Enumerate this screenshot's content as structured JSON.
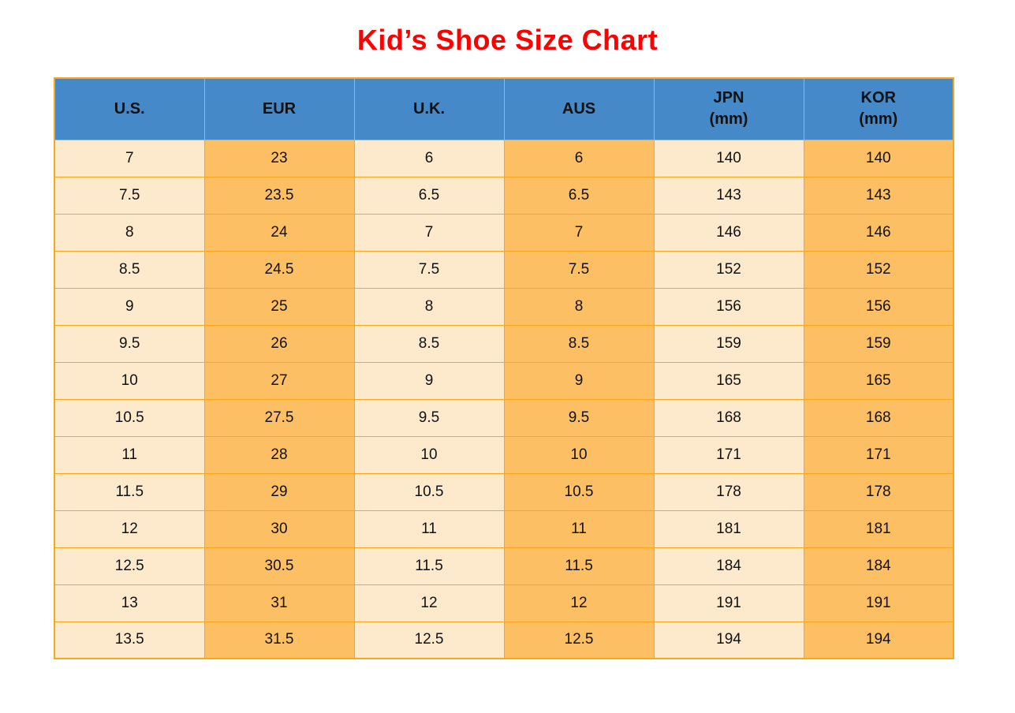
{
  "page": {
    "title": "Kid’s Shoe Size Chart"
  },
  "colors": {
    "title": "#FF0000",
    "header_bg": "#4589C8",
    "cell_light": "#FDEACC",
    "cell_orange": "#FCBF63",
    "grid_border": "#F9A61F",
    "text": "#111111"
  },
  "chart_data": {
    "type": "table",
    "title": "Kid’s Shoe Size Chart",
    "columns": [
      {
        "label": "U.S.",
        "sublabel": ""
      },
      {
        "label": "EUR",
        "sublabel": ""
      },
      {
        "label": "U.K.",
        "sublabel": ""
      },
      {
        "label": "AUS",
        "sublabel": ""
      },
      {
        "label": "JPN",
        "sublabel": "(mm)"
      },
      {
        "label": "KOR",
        "sublabel": "(mm)"
      }
    ],
    "rows": [
      [
        "7",
        "23",
        "6",
        "6",
        "140",
        "140"
      ],
      [
        "7.5",
        "23.5",
        "6.5",
        "6.5",
        "143",
        "143"
      ],
      [
        "8",
        "24",
        "7",
        "7",
        "146",
        "146"
      ],
      [
        "8.5",
        "24.5",
        "7.5",
        "7.5",
        "152",
        "152"
      ],
      [
        "9",
        "25",
        "8",
        "8",
        "156",
        "156"
      ],
      [
        "9.5",
        "26",
        "8.5",
        "8.5",
        "159",
        "159"
      ],
      [
        "10",
        "27",
        "9",
        "9",
        "165",
        "165"
      ],
      [
        "10.5",
        "27.5",
        "9.5",
        "9.5",
        "168",
        "168"
      ],
      [
        "11",
        "28",
        "10",
        "10",
        "171",
        "171"
      ],
      [
        "11.5",
        "29",
        "10.5",
        "10.5",
        "178",
        "178"
      ],
      [
        "12",
        "30",
        "11",
        "11",
        "181",
        "181"
      ],
      [
        "12.5",
        "30.5",
        "11.5",
        "11.5",
        "184",
        "184"
      ],
      [
        "13",
        "31",
        "12",
        "12",
        "191",
        "191"
      ],
      [
        "13.5",
        "31.5",
        "12.5",
        "12.5",
        "194",
        "194"
      ]
    ]
  }
}
